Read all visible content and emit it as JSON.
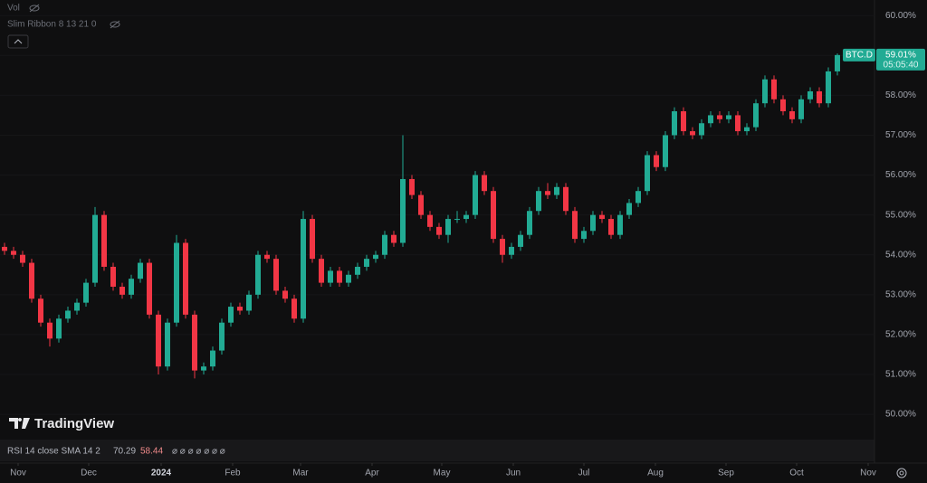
{
  "chart_data": {
    "type": "candlestick",
    "symbol": "BTC.D",
    "last_price_label": "59.01%",
    "countdown": "05:05:40",
    "up_color": "#22ab94",
    "down_color": "#f23645",
    "xlim": [
      -0.5,
      96.1
    ],
    "xticks": [
      {
        "value": 1.5,
        "label": "Nov"
      },
      {
        "value": 9.3,
        "label": "Dec"
      },
      {
        "value": 17.3,
        "label": "2024"
      },
      {
        "value": 25.2,
        "label": "Feb"
      },
      {
        "value": 32.7,
        "label": "Mar"
      },
      {
        "value": 40.6,
        "label": "Apr"
      },
      {
        "value": 48.3,
        "label": "May"
      },
      {
        "value": 56.2,
        "label": "Jun"
      },
      {
        "value": 64,
        "label": "Jul"
      },
      {
        "value": 71.9,
        "label": "Aug"
      },
      {
        "value": 79.7,
        "label": "Sep"
      },
      {
        "value": 87.5,
        "label": "Oct"
      },
      {
        "value": 95.4,
        "label": "Nov"
      }
    ],
    "ylim": [
      49.39,
      60.39
    ],
    "yticks": [
      {
        "value": 50,
        "label": "50.00%"
      },
      {
        "value": 51,
        "label": "51.00%"
      },
      {
        "value": 52,
        "label": "52.00%"
      },
      {
        "value": 53,
        "label": "53.00%"
      },
      {
        "value": 54,
        "label": "54.00%"
      },
      {
        "value": 55,
        "label": "55.00%"
      },
      {
        "value": 56,
        "label": "56.00%"
      },
      {
        "value": 57,
        "label": "57.00%"
      },
      {
        "value": 58,
        "label": "58.00%"
      },
      {
        "value": 59,
        "label": "59.00%"
      },
      {
        "value": 60,
        "label": "60.00%"
      }
    ],
    "open": [
      54.2,
      54.1,
      54.0,
      53.8,
      52.9,
      52.3,
      51.9,
      52.4,
      52.6,
      52.8,
      53.3,
      55.0,
      53.7,
      53.2,
      53.0,
      53.4,
      53.8,
      52.5,
      51.2,
      52.3,
      54.3,
      52.5,
      51.1,
      51.2,
      51.6,
      52.3,
      52.7,
      52.6,
      53.0,
      54.0,
      53.9,
      53.1,
      52.9,
      52.4,
      54.9,
      53.9,
      53.3,
      53.6,
      53.3,
      53.5,
      53.7,
      53.9,
      54.0,
      54.5,
      54.3,
      55.9,
      55.5,
      55.0,
      54.7,
      54.5,
      54.9,
      54.9,
      55.0,
      56.0,
      55.6,
      54.4,
      54.0,
      54.2,
      54.5,
      55.1,
      55.6,
      55.5,
      55.7,
      55.1,
      54.4,
      54.6,
      55.0,
      54.9,
      54.5,
      55.0,
      55.3,
      55.6,
      56.5,
      56.2,
      57.0,
      57.6,
      57.1,
      57.0,
      57.3,
      57.5,
      57.4,
      57.5,
      57.1,
      57.2,
      57.8,
      58.4,
      57.9,
      57.6,
      57.4,
      57.9,
      58.1,
      57.8,
      58.6
    ],
    "high": [
      54.3,
      54.2,
      54.1,
      53.9,
      53.0,
      52.4,
      52.5,
      52.7,
      52.9,
      53.4,
      55.2,
      55.1,
      53.8,
      53.3,
      53.5,
      53.9,
      53.9,
      52.6,
      52.4,
      54.5,
      54.4,
      52.6,
      51.3,
      51.7,
      52.4,
      52.8,
      52.8,
      53.1,
      54.1,
      54.1,
      54.0,
      53.2,
      53.0,
      55.1,
      55.0,
      54.0,
      53.7,
      53.7,
      53.6,
      53.8,
      54.0,
      54.1,
      54.6,
      54.6,
      57.0,
      56.0,
      55.6,
      55.1,
      54.8,
      55.0,
      55.1,
      55.1,
      56.1,
      56.1,
      55.7,
      54.5,
      54.3,
      54.6,
      55.2,
      55.7,
      55.8,
      55.8,
      55.8,
      55.2,
      54.7,
      55.1,
      55.1,
      55.0,
      55.1,
      55.4,
      55.7,
      56.6,
      56.6,
      57.1,
      57.7,
      57.7,
      57.2,
      57.4,
      57.6,
      57.6,
      57.6,
      57.6,
      57.3,
      57.9,
      58.5,
      58.5,
      58.0,
      57.7,
      58.0,
      58.2,
      58.2,
      58.7,
      59.05
    ],
    "low": [
      54.0,
      53.9,
      53.7,
      52.8,
      52.2,
      51.7,
      51.8,
      52.3,
      52.5,
      52.7,
      53.2,
      53.6,
      53.1,
      52.9,
      52.9,
      53.3,
      52.4,
      51.0,
      51.1,
      52.2,
      52.4,
      50.9,
      51.0,
      51.1,
      51.5,
      52.2,
      52.5,
      52.5,
      52.9,
      53.8,
      53.0,
      52.8,
      52.3,
      52.3,
      53.8,
      53.2,
      53.2,
      53.2,
      53.2,
      53.4,
      53.6,
      53.8,
      53.9,
      54.2,
      54.2,
      55.4,
      54.9,
      54.6,
      54.4,
      54.3,
      54.8,
      54.8,
      54.9,
      55.5,
      54.3,
      53.8,
      53.9,
      54.1,
      54.4,
      55.0,
      55.4,
      55.4,
      55.0,
      54.3,
      54.3,
      54.5,
      54.8,
      54.4,
      54.4,
      54.9,
      55.2,
      55.5,
      56.1,
      56.1,
      56.9,
      57.0,
      56.9,
      56.9,
      57.2,
      57.3,
      57.3,
      57.0,
      57.0,
      57.1,
      57.7,
      57.8,
      57.5,
      57.3,
      57.3,
      57.8,
      57.7,
      57.7,
      58.5
    ],
    "close": [
      54.1,
      54.0,
      53.8,
      52.9,
      52.3,
      51.9,
      52.4,
      52.6,
      52.8,
      53.3,
      55.0,
      53.7,
      53.2,
      53.0,
      53.4,
      53.8,
      52.5,
      51.2,
      52.3,
      54.3,
      52.5,
      51.1,
      51.2,
      51.6,
      52.3,
      52.7,
      52.6,
      53.0,
      54.0,
      53.9,
      53.1,
      52.9,
      52.4,
      54.9,
      53.9,
      53.3,
      53.6,
      53.3,
      53.5,
      53.7,
      53.9,
      54.0,
      54.5,
      54.3,
      55.9,
      55.5,
      55.0,
      54.7,
      54.5,
      54.9,
      54.9,
      55.0,
      56.0,
      55.6,
      54.4,
      54.0,
      54.2,
      54.5,
      55.1,
      55.6,
      55.5,
      55.7,
      55.1,
      54.4,
      54.6,
      55.0,
      54.9,
      54.5,
      55.0,
      55.3,
      55.6,
      56.5,
      56.2,
      57.0,
      57.6,
      57.1,
      57.0,
      57.3,
      57.5,
      57.4,
      57.5,
      57.1,
      57.2,
      57.8,
      58.4,
      57.9,
      57.6,
      57.4,
      57.9,
      58.1,
      57.8,
      58.6,
      59.01
    ]
  },
  "ui": {
    "legend": [
      "Vol",
      "Slim Ribbon 8 13 21 0"
    ],
    "logo": "TradingView",
    "rsi": {
      "label": "RSI 14 close SMA 14 2",
      "value": 70.29,
      "sma": 58.44,
      "na": "⌀ ⌀ ⌀ ⌀ ⌀ ⌀ ⌀"
    }
  }
}
